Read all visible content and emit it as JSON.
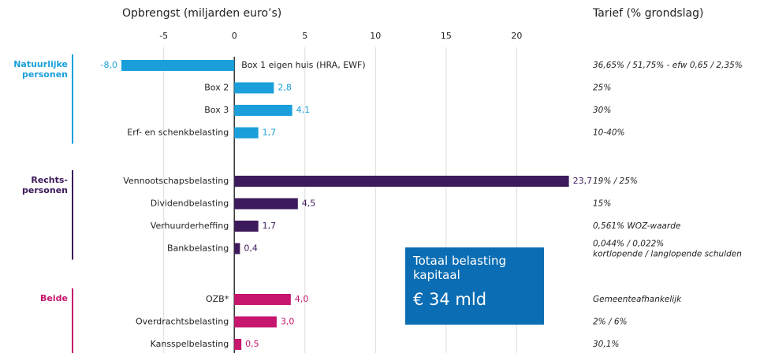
{
  "chart_data": {
    "type": "bar",
    "orientation": "horizontal",
    "xlabel": "Opbrengst (miljarden euro’s)",
    "rate_title": "Tarief (% grondslag)",
    "xlim": [
      -8.5,
      24
    ],
    "xticks": [
      -5,
      0,
      5,
      10,
      15,
      20
    ],
    "grid": true,
    "groups": [
      {
        "name": "Natuurlijke personen",
        "color": "#1a9fdb",
        "categories": [
          "Box 1 eigen huis (HRA, EWF)",
          "Box 2",
          "Box 3",
          "Erf- en schenkbelasting"
        ],
        "values": [
          -8.0,
          2.8,
          4.1,
          1.7
        ],
        "value_labels": [
          "-8,0",
          "2,8",
          "4,1",
          "1,7"
        ],
        "rates": [
          "36,65% / 51,75% - efw 0,65 / 2,35%",
          "25%",
          "30%",
          "10-40%"
        ]
      },
      {
        "name": "Rechts- personen",
        "color": "#3d1a5b",
        "categories": [
          "Vennootschapsbelasting",
          "Dividendbelasting",
          "Verhuurderheffing",
          "Bankbelasting"
        ],
        "values": [
          23.7,
          4.5,
          1.7,
          0.4
        ],
        "value_labels": [
          "23,7",
          "4,5",
          "1,7",
          "0,4"
        ],
        "rates": [
          "19% / 25%",
          "15%",
          "0,561% WOZ-waarde",
          [
            "0,044% / 0,022%",
            "kortlopende / langlopende schulden"
          ]
        ]
      },
      {
        "name": "Beide",
        "color": "#c6166d",
        "categories": [
          "OZB*",
          "Overdrachtsbelasting",
          "Kansspelbelasting"
        ],
        "values": [
          4.0,
          3.0,
          0.5
        ],
        "value_labels": [
          "4,0",
          "3,0",
          "0,5"
        ],
        "rates": [
          "Gemeenteafhankelijk",
          "2% / 6%",
          "30,1%"
        ]
      }
    ],
    "total": {
      "label": "Totaal belasting kapitaal",
      "value": "€ 34 mld",
      "color": "#0b6db3"
    }
  }
}
